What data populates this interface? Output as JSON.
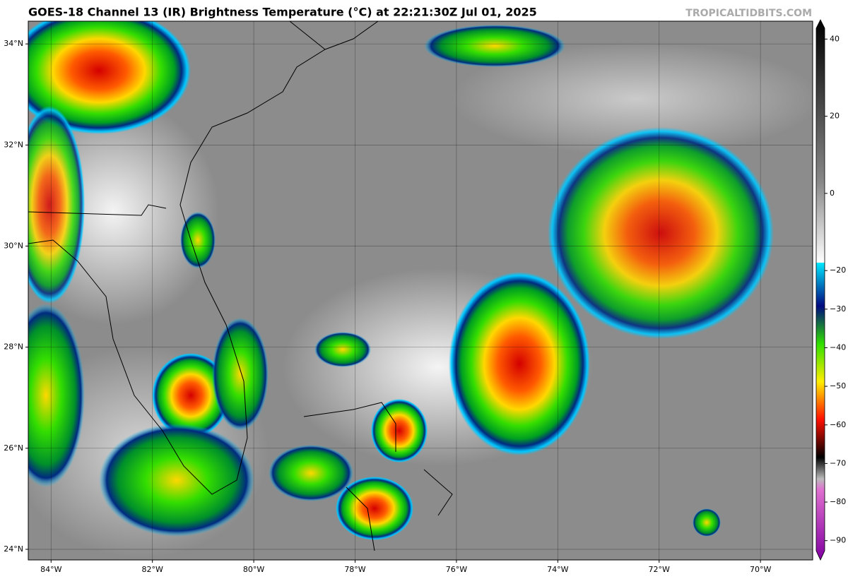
{
  "title": "GOES-18 Channel 13 (IR) Brightness Temperature (°C) at 22:21:30Z Jul 01, 2025",
  "watermark": "TROPICALTIDBITS.COM",
  "map": {
    "lon_range": [
      -84.45,
      -68.97
    ],
    "lat_range": [
      23.79,
      34.45
    ],
    "lat_ticks": [
      {
        "value": 24,
        "label": "24°N"
      },
      {
        "value": 26,
        "label": "26°N"
      },
      {
        "value": 28,
        "label": "28°N"
      },
      {
        "value": 30,
        "label": "30°N"
      },
      {
        "value": 32,
        "label": "32°N"
      },
      {
        "value": 34,
        "label": "34°N"
      }
    ],
    "lon_ticks": [
      {
        "value": -84,
        "label": "84°W"
      },
      {
        "value": -82,
        "label": "82°W"
      },
      {
        "value": -80,
        "label": "80°W"
      },
      {
        "value": -78,
        "label": "78°W"
      },
      {
        "value": -76,
        "label": "76°W"
      },
      {
        "value": -74,
        "label": "74°W"
      },
      {
        "value": -72,
        "label": "72°W"
      },
      {
        "value": -70,
        "label": "70°W"
      }
    ]
  },
  "colorbar": {
    "range": [
      -95,
      45
    ],
    "ticks": [
      40,
      20,
      0,
      {
        "value": -20,
        "label": "−20"
      },
      {
        "value": -30,
        "label": "−30"
      },
      {
        "value": -40,
        "label": "−40"
      },
      {
        "value": -50,
        "label": "−50"
      },
      {
        "value": -60,
        "label": "−60"
      },
      {
        "value": -70,
        "label": "−70"
      },
      {
        "value": -80,
        "label": "−80"
      },
      {
        "value": -90,
        "label": "−90"
      }
    ]
  }
}
